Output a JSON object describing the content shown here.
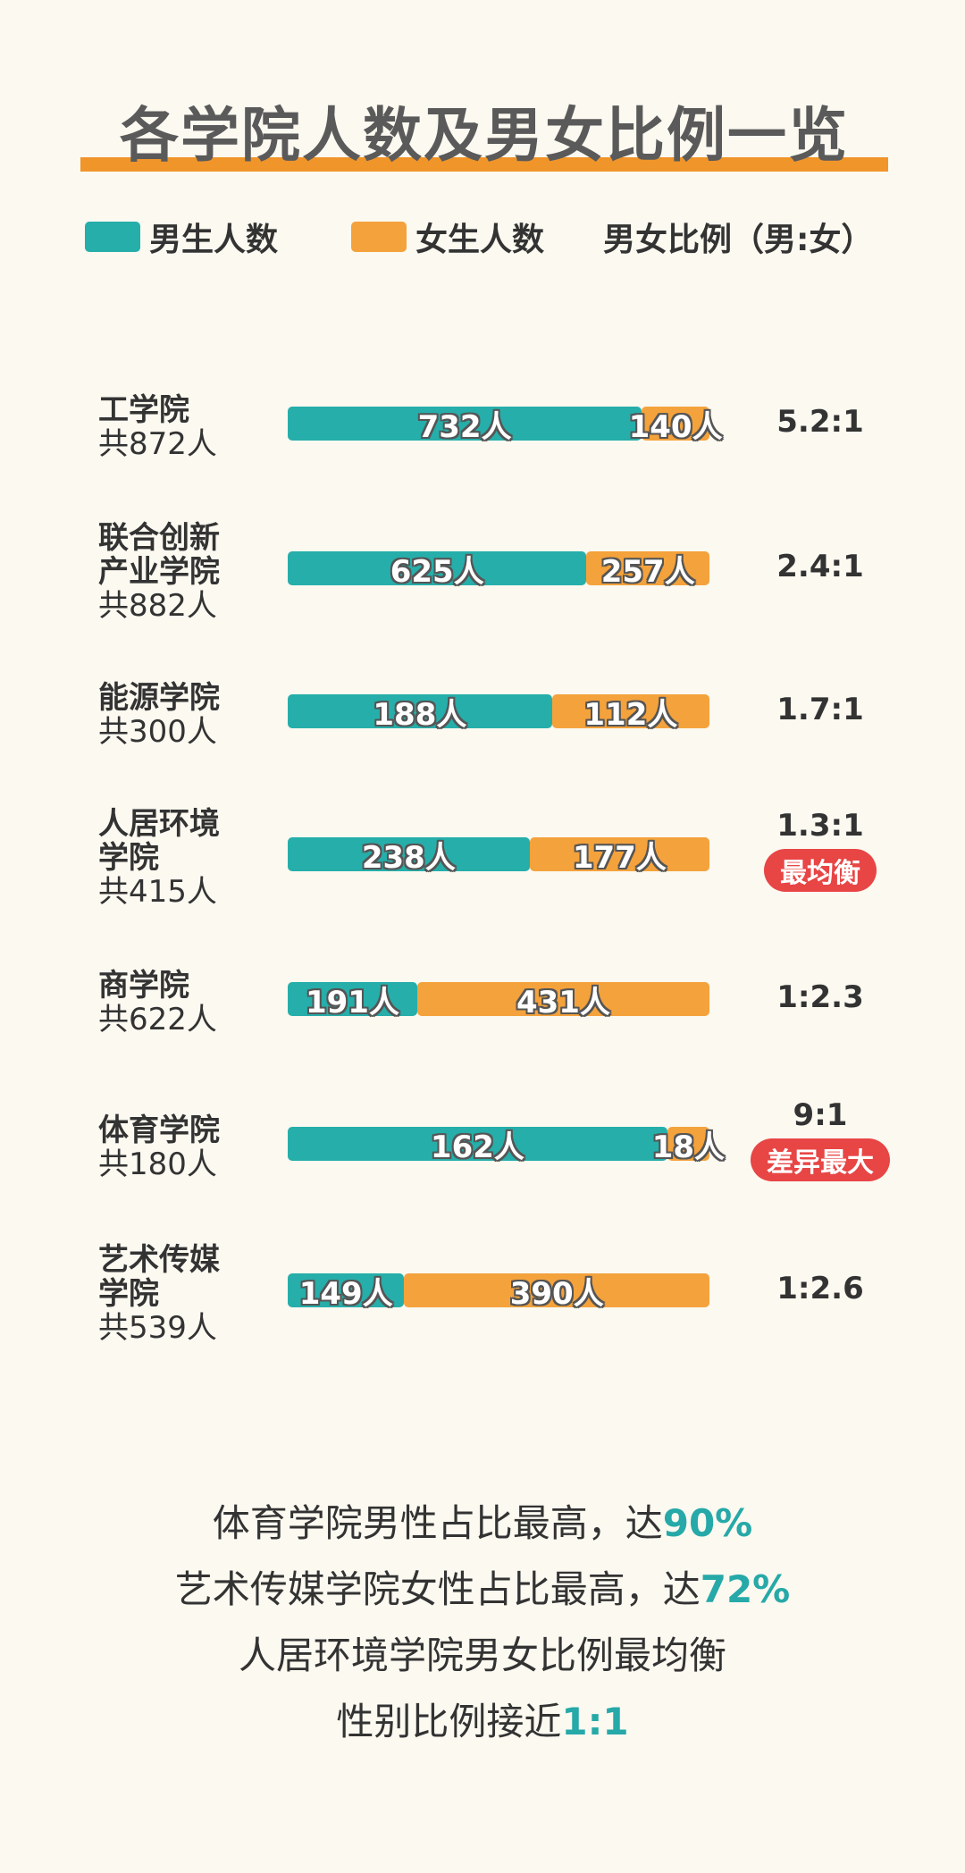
{
  "title": "各学院人数及男女比例一览",
  "legend": {
    "male": "男生人数",
    "female": "女生人数",
    "ratio": "男女比例（男:女）"
  },
  "colors": {
    "male": "#26aeaa",
    "female": "#f4a23c",
    "accent": "#f0952a",
    "badge": "#e84545",
    "highlight": "#26a9a8"
  },
  "chart_data": {
    "type": "bar",
    "stacked": true,
    "orientation": "horizontal",
    "categories": [
      "工学院",
      "联合创新产业学院",
      "能源学院",
      "人居环境学院",
      "商学院",
      "体育学院",
      "艺术传媒学院"
    ],
    "series": [
      {
        "name": "男生人数",
        "values": [
          732,
          625,
          188,
          238,
          191,
          162,
          149
        ]
      },
      {
        "name": "女生人数",
        "values": [
          140,
          257,
          112,
          177,
          431,
          18,
          390
        ]
      }
    ],
    "rows": [
      {
        "name": "工学院",
        "total_label": "共872人",
        "male_label": "732人",
        "female_label": "140人",
        "ratio": "5.2:1",
        "badge": ""
      },
      {
        "name": "联合创新\n产业学院",
        "total_label": "共882人",
        "male_label": "625人",
        "female_label": "257人",
        "ratio": "2.4:1",
        "badge": ""
      },
      {
        "name": "能源学院",
        "total_label": "共300人",
        "male_label": "188人",
        "female_label": "112人",
        "ratio": "1.7:1",
        "badge": ""
      },
      {
        "name": "人居环境\n学院",
        "total_label": "共415人",
        "male_label": "238人",
        "female_label": "177人",
        "ratio": "1.3:1",
        "badge": "最均衡"
      },
      {
        "name": "商学院",
        "total_label": "共622人",
        "male_label": "191人",
        "female_label": "431人",
        "ratio": "1:2.3",
        "badge": ""
      },
      {
        "name": "体育学院",
        "total_label": "共180人",
        "male_label": "162人",
        "female_label": "18人",
        "ratio": "9:1",
        "badge": "差异最大"
      },
      {
        "name": "艺术传媒\n学院",
        "total_label": "共539人",
        "male_label": "149人",
        "female_label": "390人",
        "ratio": "1:2.6",
        "badge": ""
      }
    ]
  },
  "summary": [
    {
      "text": "体育学院男性占比最高，达",
      "highlight": "90%"
    },
    {
      "text": "艺术传媒学院女性占比最高，达",
      "highlight": "72%"
    },
    {
      "text": "人居环境学院男女比例最均衡",
      "highlight": ""
    },
    {
      "text": "性别比例接近",
      "highlight": "1:1"
    }
  ]
}
